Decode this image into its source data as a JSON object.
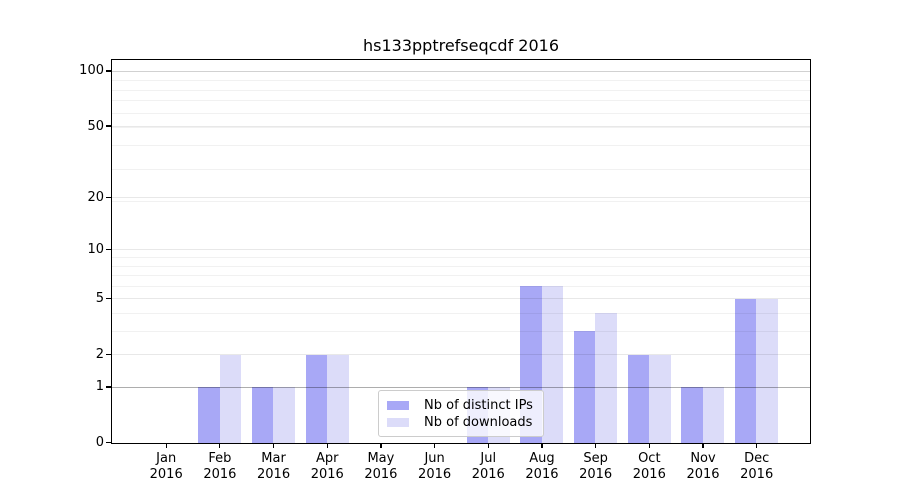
{
  "title": "hs133pptrefseqcdf 2016",
  "chart_data": {
    "type": "bar",
    "title": "hs133pptrefseqcdf 2016",
    "categories": [
      "Jan 2016",
      "Feb 2016",
      "Mar 2016",
      "Apr 2016",
      "May 2016",
      "Jun 2016",
      "Jul 2016",
      "Aug 2016",
      "Sep 2016",
      "Oct 2016",
      "Nov 2016",
      "Dec 2016"
    ],
    "series": [
      {
        "name": "Nb of distinct IPs",
        "color": "#a8a8f6",
        "values": [
          0,
          1,
          1,
          2,
          0,
          0,
          1,
          6,
          3,
          2,
          1,
          5
        ]
      },
      {
        "name": "Nb of downloads",
        "color": "#dcdcf9",
        "values": [
          0,
          2,
          1,
          2,
          0,
          0,
          1,
          6,
          4,
          2,
          1,
          5
        ]
      }
    ],
    "yscale": "log1p",
    "yticks": [
      0,
      1,
      2,
      5,
      10,
      20,
      50,
      100
    ],
    "ylim": [
      0,
      115
    ],
    "xlabel": "",
    "ylabel": "",
    "grid": true,
    "legend_position": "lower center"
  },
  "colors": {
    "background": "#ffffff",
    "axis": "#000000",
    "gridline_value1": "rgba(0,0,0,0.32)",
    "gridline_value100": "rgba(0,0,0,0.18)",
    "gridline_major": "rgba(0,0,0,0.09)",
    "gridline_minor": "rgba(0,0,0,0.055)"
  }
}
